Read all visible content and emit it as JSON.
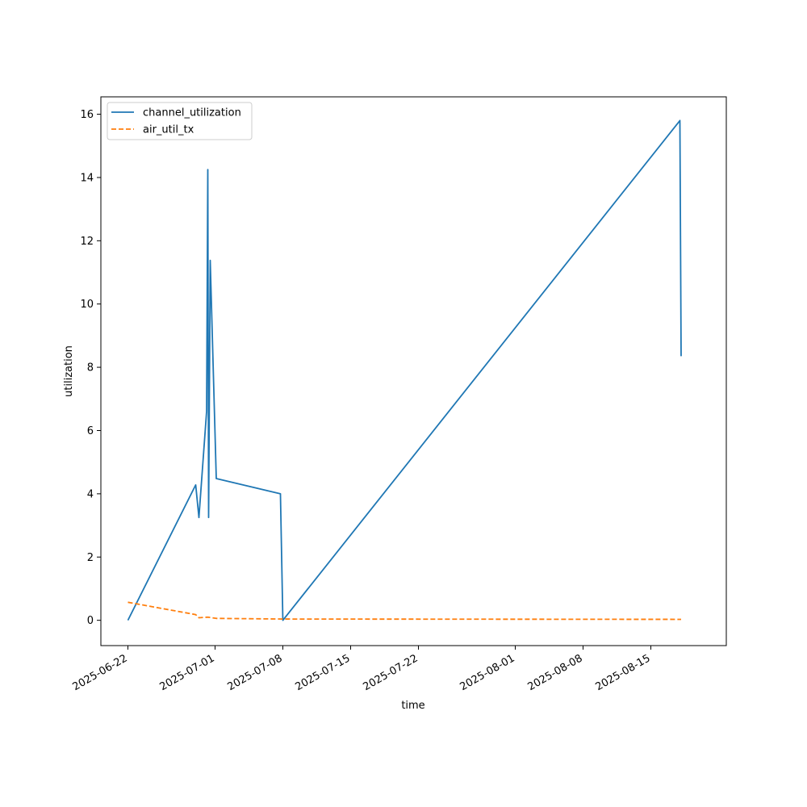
{
  "chart_data": {
    "type": "line",
    "title": "",
    "xlabel": "time",
    "ylabel": "utilization",
    "x_axis_kind": "date",
    "xlim": [
      "2025-06-19T05:00",
      "2025-08-22T19:00"
    ],
    "ylim": [
      -0.8,
      16.55
    ],
    "x_ticks": [
      "2025-06-22",
      "2025-07-01",
      "2025-07-08",
      "2025-07-15",
      "2025-07-22",
      "2025-08-01",
      "2025-08-08",
      "2025-08-15"
    ],
    "y_ticks": [
      0,
      2,
      4,
      6,
      8,
      10,
      12,
      14,
      16
    ],
    "grid": false,
    "legend_position": "upper-left",
    "series": [
      {
        "name": "channel_utilization",
        "color": "#1f77b4",
        "dash": "solid",
        "points": [
          {
            "x": "2025-06-22T00:00",
            "y": 0.0
          },
          {
            "x": "2025-06-29T00:00",
            "y": 4.28
          },
          {
            "x": "2025-06-29T08:00",
            "y": 3.25
          },
          {
            "x": "2025-06-30T03:00",
            "y": 6.6
          },
          {
            "x": "2025-06-30T06:00",
            "y": 14.25
          },
          {
            "x": "2025-06-30T08:00",
            "y": 3.25
          },
          {
            "x": "2025-06-30T12:00",
            "y": 11.38
          },
          {
            "x": "2025-07-01T03:00",
            "y": 4.48
          },
          {
            "x": "2025-07-07T18:00",
            "y": 4.0
          },
          {
            "x": "2025-07-08T00:00",
            "y": 0.0
          },
          {
            "x": "2025-08-18T00:00",
            "y": 15.8
          },
          {
            "x": "2025-08-18T03:00",
            "y": 8.35
          }
        ]
      },
      {
        "name": "air_util_tx",
        "color": "#ff7f0e",
        "dash": "dashed",
        "points": [
          {
            "x": "2025-06-22T00:00",
            "y": 0.57
          },
          {
            "x": "2025-06-29T00:00",
            "y": 0.18
          },
          {
            "x": "2025-06-29T08:00",
            "y": 0.08
          },
          {
            "x": "2025-06-30T06:00",
            "y": 0.1
          },
          {
            "x": "2025-07-01T03:00",
            "y": 0.06
          },
          {
            "x": "2025-07-08T00:00",
            "y": 0.04
          },
          {
            "x": "2025-08-18T00:00",
            "y": 0.03
          },
          {
            "x": "2025-08-18T03:00",
            "y": 0.03
          }
        ]
      }
    ]
  }
}
